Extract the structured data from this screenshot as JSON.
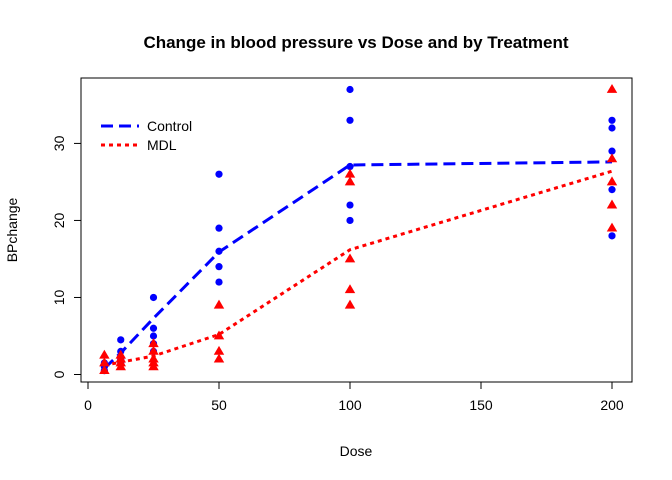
{
  "chart_data": {
    "type": "scatter",
    "title": "Change in blood pressure vs Dose and by Treatment",
    "xlabel": "Dose",
    "ylabel": "BPchange",
    "xlim": [
      0,
      200
    ],
    "ylim": [
      0,
      37
    ],
    "xticks": [
      0,
      50,
      100,
      150,
      200
    ],
    "yticks": [
      0,
      10,
      20,
      30
    ],
    "grid": false,
    "legend_position": "top-left",
    "series": [
      {
        "name": "Control",
        "color": "#0000ff",
        "marker": "circle",
        "points": [
          {
            "x": 6.25,
            "y": 0.5
          },
          {
            "x": 6.25,
            "y": 1.0
          },
          {
            "x": 6.25,
            "y": 1.5
          },
          {
            "x": 12.5,
            "y": 1.5
          },
          {
            "x": 12.5,
            "y": 2.0
          },
          {
            "x": 12.5,
            "y": 3.0
          },
          {
            "x": 12.5,
            "y": 4.5
          },
          {
            "x": 25,
            "y": 3.0
          },
          {
            "x": 25,
            "y": 4.0
          },
          {
            "x": 25,
            "y": 5.0
          },
          {
            "x": 25,
            "y": 6.0
          },
          {
            "x": 25,
            "y": 10.0
          },
          {
            "x": 50,
            "y": 12.0
          },
          {
            "x": 50,
            "y": 14.0
          },
          {
            "x": 50,
            "y": 16.0
          },
          {
            "x": 50,
            "y": 19.0
          },
          {
            "x": 50,
            "y": 26.0
          },
          {
            "x": 100,
            "y": 20.0
          },
          {
            "x": 100,
            "y": 22.0
          },
          {
            "x": 100,
            "y": 27.0
          },
          {
            "x": 100,
            "y": 33.0
          },
          {
            "x": 100,
            "y": 37.0
          },
          {
            "x": 200,
            "y": 18.0
          },
          {
            "x": 200,
            "y": 24.0
          },
          {
            "x": 200,
            "y": 29.0
          },
          {
            "x": 200,
            "y": 32.0
          },
          {
            "x": 200,
            "y": 33.0
          }
        ],
        "trend": [
          {
            "x": 6.25,
            "y": 0.8
          },
          {
            "x": 12.5,
            "y": 2.8
          },
          {
            "x": 25,
            "y": 7.3
          },
          {
            "x": 50,
            "y": 15.9
          },
          {
            "x": 100,
            "y": 27.2
          },
          {
            "x": 200,
            "y": 27.6
          }
        ]
      },
      {
        "name": "MDL",
        "color": "#ff0000",
        "marker": "triangle",
        "points": [
          {
            "x": 6.25,
            "y": 0.5
          },
          {
            "x": 6.25,
            "y": 1.5
          },
          {
            "x": 6.25,
            "y": 2.5
          },
          {
            "x": 12.5,
            "y": 1.0
          },
          {
            "x": 12.5,
            "y": 1.5
          },
          {
            "x": 12.5,
            "y": 2.0
          },
          {
            "x": 12.5,
            "y": 2.5
          },
          {
            "x": 25,
            "y": 1.0
          },
          {
            "x": 25,
            "y": 1.5
          },
          {
            "x": 25,
            "y": 2.0
          },
          {
            "x": 25,
            "y": 3.0
          },
          {
            "x": 25,
            "y": 4.0
          },
          {
            "x": 50,
            "y": 2.0
          },
          {
            "x": 50,
            "y": 3.0
          },
          {
            "x": 50,
            "y": 5.0
          },
          {
            "x": 50,
            "y": 9.0
          },
          {
            "x": 100,
            "y": 9.0
          },
          {
            "x": 100,
            "y": 11.0
          },
          {
            "x": 100,
            "y": 15.0
          },
          {
            "x": 100,
            "y": 25.0
          },
          {
            "x": 100,
            "y": 26.0
          },
          {
            "x": 200,
            "y": 19.0
          },
          {
            "x": 200,
            "y": 22.0
          },
          {
            "x": 200,
            "y": 25.0
          },
          {
            "x": 200,
            "y": 28.0
          },
          {
            "x": 200,
            "y": 37.0
          }
        ],
        "trend": [
          {
            "x": 6.25,
            "y": 1.2
          },
          {
            "x": 12.5,
            "y": 1.6
          },
          {
            "x": 25,
            "y": 2.4
          },
          {
            "x": 50,
            "y": 5.2
          },
          {
            "x": 100,
            "y": 16.2
          },
          {
            "x": 200,
            "y": 26.4
          }
        ]
      }
    ]
  }
}
